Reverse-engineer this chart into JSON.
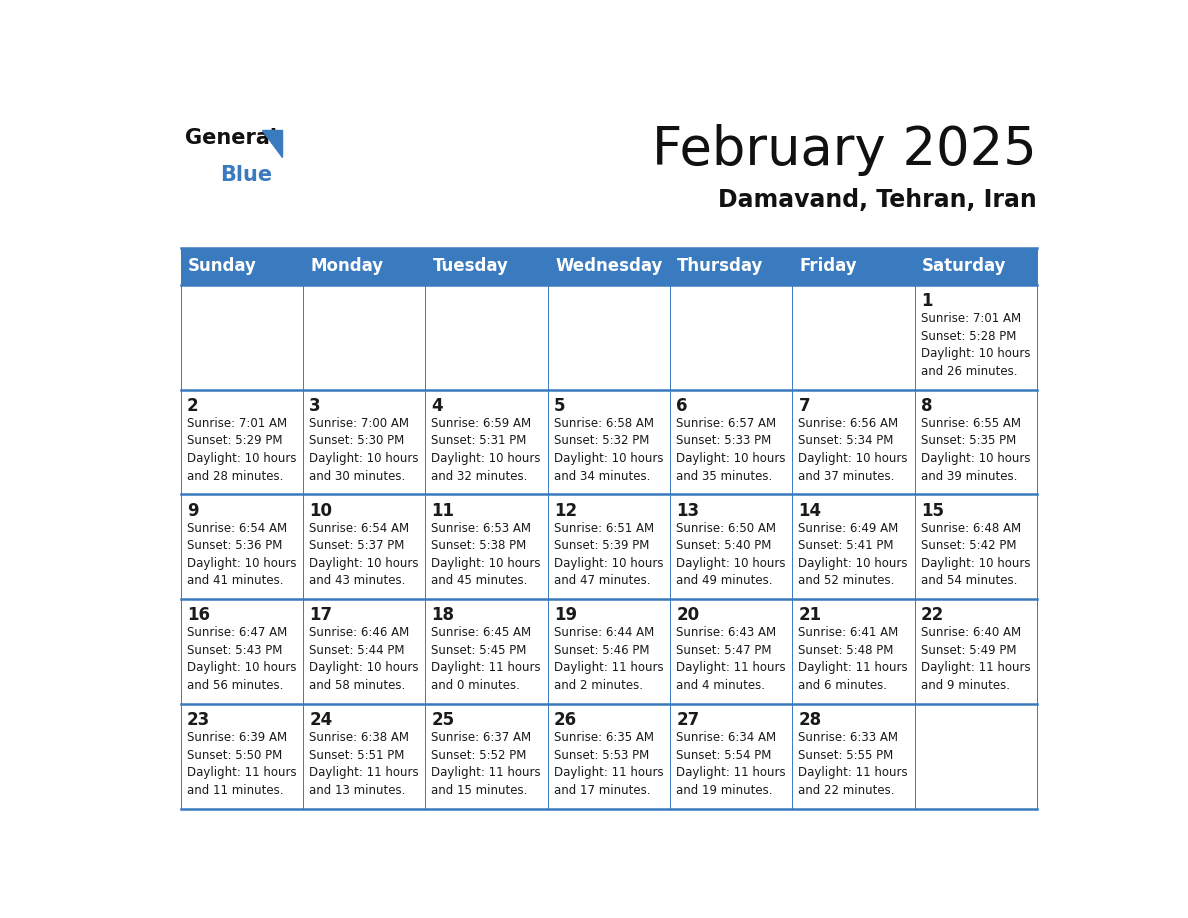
{
  "title": "February 2025",
  "subtitle": "Damavand, Tehran, Iran",
  "header_bg_color": "#3a7abf",
  "header_text_color": "#ffffff",
  "border_color": "#3a7abf",
  "text_color": "#1a1a1a",
  "day_headers": [
    "Sunday",
    "Monday",
    "Tuesday",
    "Wednesday",
    "Thursday",
    "Friday",
    "Saturday"
  ],
  "weeks": [
    [
      {
        "day": null,
        "info": null
      },
      {
        "day": null,
        "info": null
      },
      {
        "day": null,
        "info": null
      },
      {
        "day": null,
        "info": null
      },
      {
        "day": null,
        "info": null
      },
      {
        "day": null,
        "info": null
      },
      {
        "day": 1,
        "info": "Sunrise: 7:01 AM\nSunset: 5:28 PM\nDaylight: 10 hours\nand 26 minutes."
      }
    ],
    [
      {
        "day": 2,
        "info": "Sunrise: 7:01 AM\nSunset: 5:29 PM\nDaylight: 10 hours\nand 28 minutes."
      },
      {
        "day": 3,
        "info": "Sunrise: 7:00 AM\nSunset: 5:30 PM\nDaylight: 10 hours\nand 30 minutes."
      },
      {
        "day": 4,
        "info": "Sunrise: 6:59 AM\nSunset: 5:31 PM\nDaylight: 10 hours\nand 32 minutes."
      },
      {
        "day": 5,
        "info": "Sunrise: 6:58 AM\nSunset: 5:32 PM\nDaylight: 10 hours\nand 34 minutes."
      },
      {
        "day": 6,
        "info": "Sunrise: 6:57 AM\nSunset: 5:33 PM\nDaylight: 10 hours\nand 35 minutes."
      },
      {
        "day": 7,
        "info": "Sunrise: 6:56 AM\nSunset: 5:34 PM\nDaylight: 10 hours\nand 37 minutes."
      },
      {
        "day": 8,
        "info": "Sunrise: 6:55 AM\nSunset: 5:35 PM\nDaylight: 10 hours\nand 39 minutes."
      }
    ],
    [
      {
        "day": 9,
        "info": "Sunrise: 6:54 AM\nSunset: 5:36 PM\nDaylight: 10 hours\nand 41 minutes."
      },
      {
        "day": 10,
        "info": "Sunrise: 6:54 AM\nSunset: 5:37 PM\nDaylight: 10 hours\nand 43 minutes."
      },
      {
        "day": 11,
        "info": "Sunrise: 6:53 AM\nSunset: 5:38 PM\nDaylight: 10 hours\nand 45 minutes."
      },
      {
        "day": 12,
        "info": "Sunrise: 6:51 AM\nSunset: 5:39 PM\nDaylight: 10 hours\nand 47 minutes."
      },
      {
        "day": 13,
        "info": "Sunrise: 6:50 AM\nSunset: 5:40 PM\nDaylight: 10 hours\nand 49 minutes."
      },
      {
        "day": 14,
        "info": "Sunrise: 6:49 AM\nSunset: 5:41 PM\nDaylight: 10 hours\nand 52 minutes."
      },
      {
        "day": 15,
        "info": "Sunrise: 6:48 AM\nSunset: 5:42 PM\nDaylight: 10 hours\nand 54 minutes."
      }
    ],
    [
      {
        "day": 16,
        "info": "Sunrise: 6:47 AM\nSunset: 5:43 PM\nDaylight: 10 hours\nand 56 minutes."
      },
      {
        "day": 17,
        "info": "Sunrise: 6:46 AM\nSunset: 5:44 PM\nDaylight: 10 hours\nand 58 minutes."
      },
      {
        "day": 18,
        "info": "Sunrise: 6:45 AM\nSunset: 5:45 PM\nDaylight: 11 hours\nand 0 minutes."
      },
      {
        "day": 19,
        "info": "Sunrise: 6:44 AM\nSunset: 5:46 PM\nDaylight: 11 hours\nand 2 minutes."
      },
      {
        "day": 20,
        "info": "Sunrise: 6:43 AM\nSunset: 5:47 PM\nDaylight: 11 hours\nand 4 minutes."
      },
      {
        "day": 21,
        "info": "Sunrise: 6:41 AM\nSunset: 5:48 PM\nDaylight: 11 hours\nand 6 minutes."
      },
      {
        "day": 22,
        "info": "Sunrise: 6:40 AM\nSunset: 5:49 PM\nDaylight: 11 hours\nand 9 minutes."
      }
    ],
    [
      {
        "day": 23,
        "info": "Sunrise: 6:39 AM\nSunset: 5:50 PM\nDaylight: 11 hours\nand 11 minutes."
      },
      {
        "day": 24,
        "info": "Sunrise: 6:38 AM\nSunset: 5:51 PM\nDaylight: 11 hours\nand 13 minutes."
      },
      {
        "day": 25,
        "info": "Sunrise: 6:37 AM\nSunset: 5:52 PM\nDaylight: 11 hours\nand 15 minutes."
      },
      {
        "day": 26,
        "info": "Sunrise: 6:35 AM\nSunset: 5:53 PM\nDaylight: 11 hours\nand 17 minutes."
      },
      {
        "day": 27,
        "info": "Sunrise: 6:34 AM\nSunset: 5:54 PM\nDaylight: 11 hours\nand 19 minutes."
      },
      {
        "day": 28,
        "info": "Sunrise: 6:33 AM\nSunset: 5:55 PM\nDaylight: 11 hours\nand 22 minutes."
      },
      {
        "day": null,
        "info": null
      }
    ]
  ],
  "title_fontsize": 38,
  "subtitle_fontsize": 17,
  "header_fontsize": 12,
  "day_num_fontsize": 12,
  "info_fontsize": 8.5
}
